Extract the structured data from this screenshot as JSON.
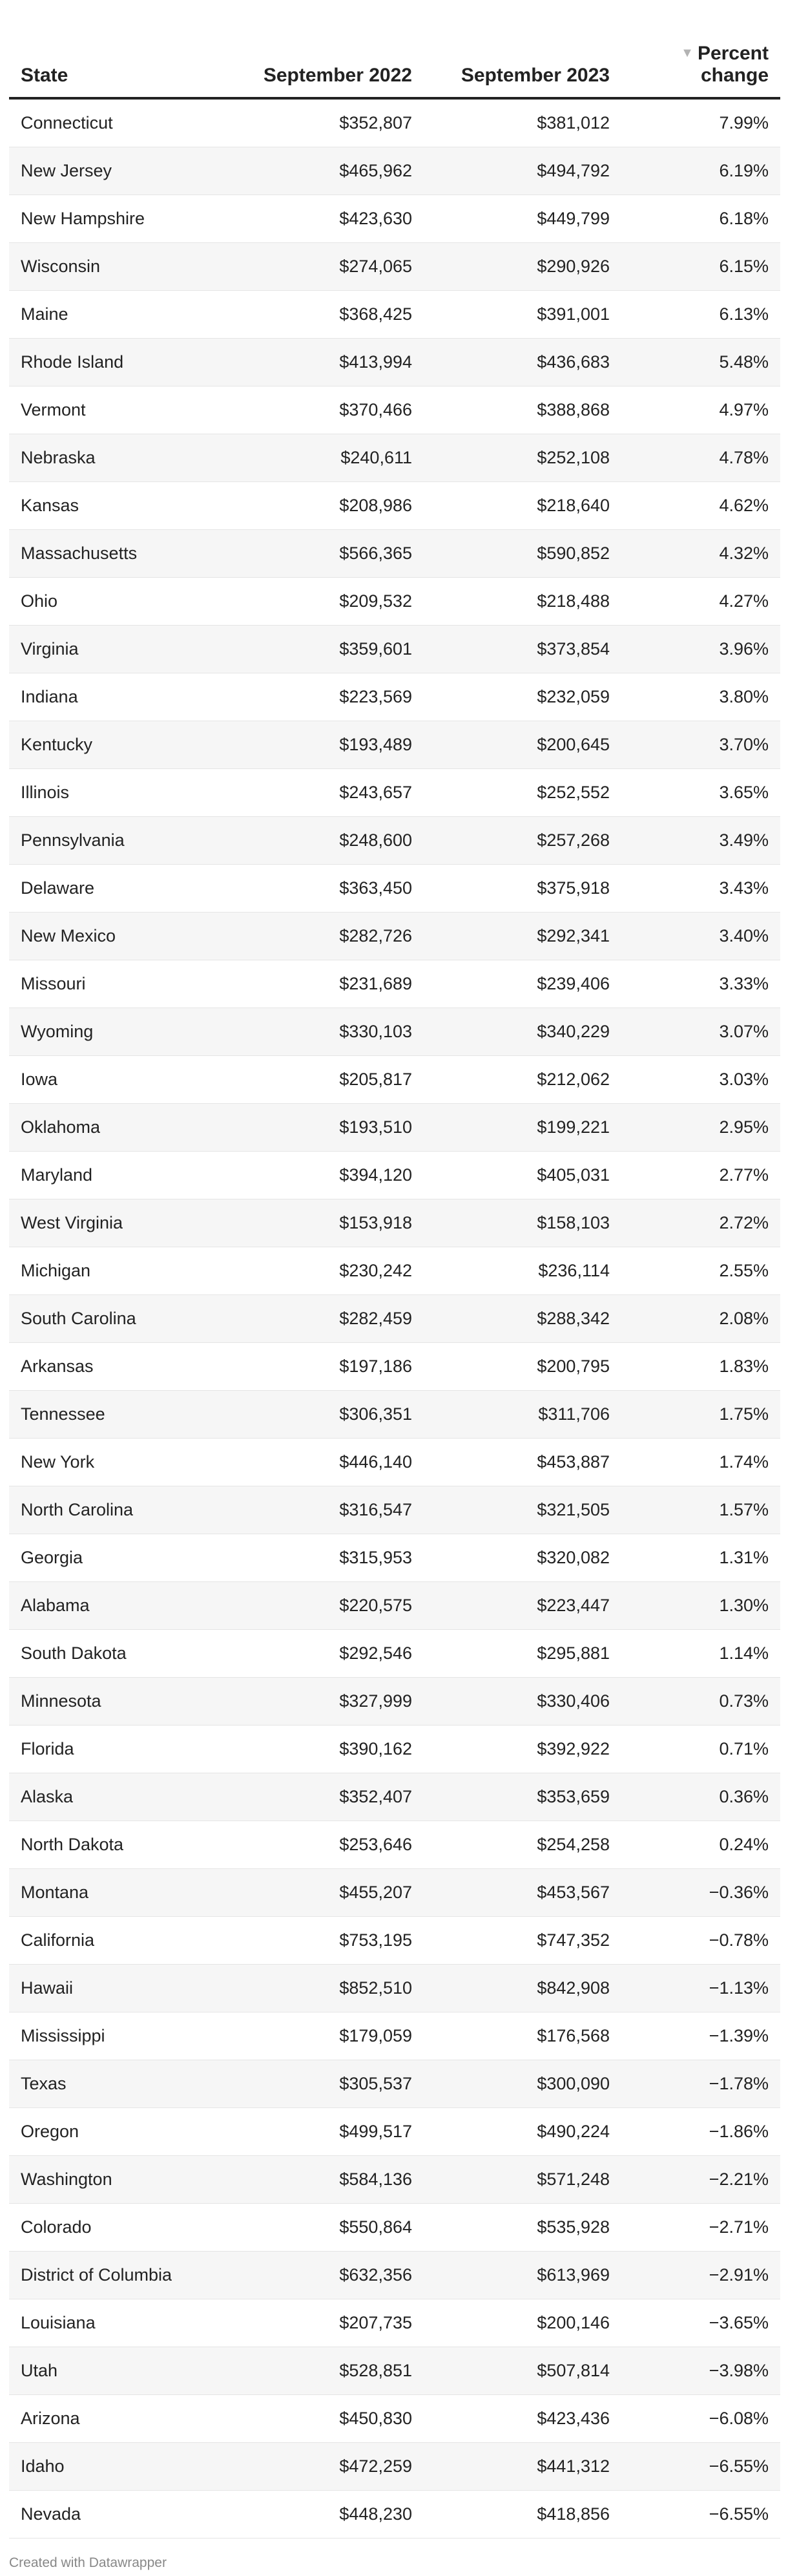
{
  "table": {
    "headers": {
      "state": "State",
      "sep2022": "September 2022",
      "sep2023": "September 2023",
      "pct_line1": "Percent",
      "pct_line2": "change",
      "sort_indicator": "▼"
    },
    "rows": [
      {
        "state": "Connecticut",
        "sep2022": "$352,807",
        "sep2023": "$381,012",
        "pct": "7.99%"
      },
      {
        "state": "New Jersey",
        "sep2022": "$465,962",
        "sep2023": "$494,792",
        "pct": "6.19%"
      },
      {
        "state": "New Hampshire",
        "sep2022": "$423,630",
        "sep2023": "$449,799",
        "pct": "6.18%"
      },
      {
        "state": "Wisconsin",
        "sep2022": "$274,065",
        "sep2023": "$290,926",
        "pct": "6.15%"
      },
      {
        "state": "Maine",
        "sep2022": "$368,425",
        "sep2023": "$391,001",
        "pct": "6.13%"
      },
      {
        "state": "Rhode Island",
        "sep2022": "$413,994",
        "sep2023": "$436,683",
        "pct": "5.48%"
      },
      {
        "state": "Vermont",
        "sep2022": "$370,466",
        "sep2023": "$388,868",
        "pct": "4.97%"
      },
      {
        "state": "Nebraska",
        "sep2022": "$240,611",
        "sep2023": "$252,108",
        "pct": "4.78%"
      },
      {
        "state": "Kansas",
        "sep2022": "$208,986",
        "sep2023": "$218,640",
        "pct": "4.62%"
      },
      {
        "state": "Massachusetts",
        "sep2022": "$566,365",
        "sep2023": "$590,852",
        "pct": "4.32%"
      },
      {
        "state": "Ohio",
        "sep2022": "$209,532",
        "sep2023": "$218,488",
        "pct": "4.27%"
      },
      {
        "state": "Virginia",
        "sep2022": "$359,601",
        "sep2023": "$373,854",
        "pct": "3.96%"
      },
      {
        "state": "Indiana",
        "sep2022": "$223,569",
        "sep2023": "$232,059",
        "pct": "3.80%"
      },
      {
        "state": "Kentucky",
        "sep2022": "$193,489",
        "sep2023": "$200,645",
        "pct": "3.70%"
      },
      {
        "state": "Illinois",
        "sep2022": "$243,657",
        "sep2023": "$252,552",
        "pct": "3.65%"
      },
      {
        "state": "Pennsylvania",
        "sep2022": "$248,600",
        "sep2023": "$257,268",
        "pct": "3.49%"
      },
      {
        "state": "Delaware",
        "sep2022": "$363,450",
        "sep2023": "$375,918",
        "pct": "3.43%"
      },
      {
        "state": "New Mexico",
        "sep2022": "$282,726",
        "sep2023": "$292,341",
        "pct": "3.40%"
      },
      {
        "state": "Missouri",
        "sep2022": "$231,689",
        "sep2023": "$239,406",
        "pct": "3.33%"
      },
      {
        "state": "Wyoming",
        "sep2022": "$330,103",
        "sep2023": "$340,229",
        "pct": "3.07%"
      },
      {
        "state": "Iowa",
        "sep2022": "$205,817",
        "sep2023": "$212,062",
        "pct": "3.03%"
      },
      {
        "state": "Oklahoma",
        "sep2022": "$193,510",
        "sep2023": "$199,221",
        "pct": "2.95%"
      },
      {
        "state": "Maryland",
        "sep2022": "$394,120",
        "sep2023": "$405,031",
        "pct": "2.77%"
      },
      {
        "state": "West Virginia",
        "sep2022": "$153,918",
        "sep2023": "$158,103",
        "pct": "2.72%"
      },
      {
        "state": "Michigan",
        "sep2022": "$230,242",
        "sep2023": "$236,114",
        "pct": "2.55%"
      },
      {
        "state": "South Carolina",
        "sep2022": "$282,459",
        "sep2023": "$288,342",
        "pct": "2.08%"
      },
      {
        "state": "Arkansas",
        "sep2022": "$197,186",
        "sep2023": "$200,795",
        "pct": "1.83%"
      },
      {
        "state": "Tennessee",
        "sep2022": "$306,351",
        "sep2023": "$311,706",
        "pct": "1.75%"
      },
      {
        "state": "New York",
        "sep2022": "$446,140",
        "sep2023": "$453,887",
        "pct": "1.74%"
      },
      {
        "state": "North Carolina",
        "sep2022": "$316,547",
        "sep2023": "$321,505",
        "pct": "1.57%"
      },
      {
        "state": "Georgia",
        "sep2022": "$315,953",
        "sep2023": "$320,082",
        "pct": "1.31%"
      },
      {
        "state": "Alabama",
        "sep2022": "$220,575",
        "sep2023": "$223,447",
        "pct": "1.30%"
      },
      {
        "state": "South Dakota",
        "sep2022": "$292,546",
        "sep2023": "$295,881",
        "pct": "1.14%"
      },
      {
        "state": "Minnesota",
        "sep2022": "$327,999",
        "sep2023": "$330,406",
        "pct": "0.73%"
      },
      {
        "state": "Florida",
        "sep2022": "$390,162",
        "sep2023": "$392,922",
        "pct": "0.71%"
      },
      {
        "state": "Alaska",
        "sep2022": "$352,407",
        "sep2023": "$353,659",
        "pct": "0.36%"
      },
      {
        "state": "North Dakota",
        "sep2022": "$253,646",
        "sep2023": "$254,258",
        "pct": "0.24%"
      },
      {
        "state": "Montana",
        "sep2022": "$455,207",
        "sep2023": "$453,567",
        "pct": "−0.36%"
      },
      {
        "state": "California",
        "sep2022": "$753,195",
        "sep2023": "$747,352",
        "pct": "−0.78%"
      },
      {
        "state": "Hawaii",
        "sep2022": "$852,510",
        "sep2023": "$842,908",
        "pct": "−1.13%"
      },
      {
        "state": "Mississippi",
        "sep2022": "$179,059",
        "sep2023": "$176,568",
        "pct": "−1.39%"
      },
      {
        "state": "Texas",
        "sep2022": "$305,537",
        "sep2023": "$300,090",
        "pct": "−1.78%"
      },
      {
        "state": "Oregon",
        "sep2022": "$499,517",
        "sep2023": "$490,224",
        "pct": "−1.86%"
      },
      {
        "state": "Washington",
        "sep2022": "$584,136",
        "sep2023": "$571,248",
        "pct": "−2.21%"
      },
      {
        "state": "Colorado",
        "sep2022": "$550,864",
        "sep2023": "$535,928",
        "pct": "−2.71%"
      },
      {
        "state": "District of Columbia",
        "sep2022": "$632,356",
        "sep2023": "$613,969",
        "pct": "−2.91%"
      },
      {
        "state": "Louisiana",
        "sep2022": "$207,735",
        "sep2023": "$200,146",
        "pct": "−3.65%"
      },
      {
        "state": "Utah",
        "sep2022": "$528,851",
        "sep2023": "$507,814",
        "pct": "−3.98%"
      },
      {
        "state": "Arizona",
        "sep2022": "$450,830",
        "sep2023": "$423,436",
        "pct": "−6.08%"
      },
      {
        "state": "Idaho",
        "sep2022": "$472,259",
        "sep2023": "$441,312",
        "pct": "−6.55%"
      },
      {
        "state": "Nevada",
        "sep2022": "$448,230",
        "sep2023": "$418,856",
        "pct": "−6.55%"
      }
    ]
  },
  "footer": {
    "credit": "Created with Datawrapper"
  }
}
